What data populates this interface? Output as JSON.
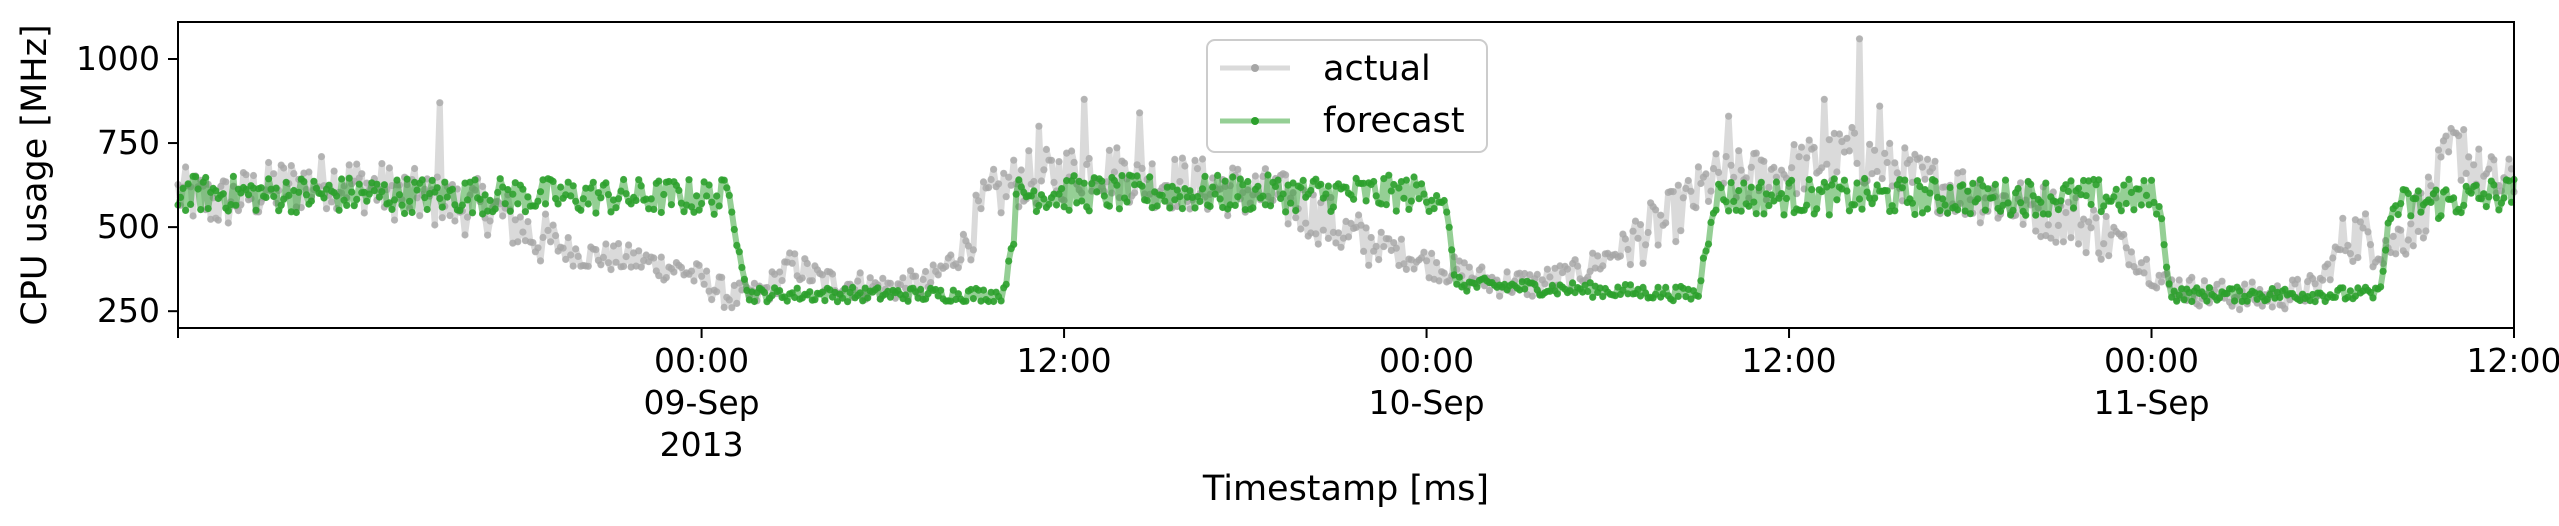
{
  "chart_data": {
    "type": "line",
    "xlabel": "Timestamp [ms]",
    "ylabel": "CPU usage [MHz]",
    "xlim": [
      "2013-09-08T06:40",
      "2013-09-11T12:00"
    ],
    "ylim": [
      200,
      1110
    ],
    "x_ticks": [
      {
        "t": "2013-09-09T00:00",
        "lines": [
          "00:00",
          "09-Sep",
          "2013"
        ]
      },
      {
        "t": "2013-09-09T12:00",
        "lines": [
          "12:00"
        ]
      },
      {
        "t": "2013-09-10T00:00",
        "lines": [
          "00:00",
          "10-Sep"
        ]
      },
      {
        "t": "2013-09-10T12:00",
        "lines": [
          "12:00"
        ]
      },
      {
        "t": "2013-09-11T00:00",
        "lines": [
          "00:00",
          "11-Sep"
        ]
      },
      {
        "t": "2013-09-11T12:00",
        "lines": [
          "12:00"
        ]
      }
    ],
    "y_ticks": [
      250,
      500,
      750,
      1000
    ],
    "grid": false,
    "legend": {
      "position": "upper-center"
    },
    "sampling_interval_min": 5,
    "series": [
      {
        "name": "actual",
        "color": "#a6a6a6",
        "start": "2013-09-08T06:40",
        "anchors": [
          [
            "2013-09-08T06:40",
            600
          ],
          [
            "2013-09-08T08:00",
            570
          ],
          [
            "2013-09-08T10:00",
            620
          ],
          [
            "2013-09-08T12:00",
            640
          ],
          [
            "2013-09-08T14:00",
            600
          ],
          [
            "2013-09-08T16:00",
            560
          ],
          [
            "2013-09-08T17:00",
            560
          ],
          [
            "2013-09-08T18:30",
            470
          ],
          [
            "2013-09-08T20:00",
            420
          ],
          [
            "2013-09-08T22:00",
            400
          ],
          [
            "2013-09-08T23:30",
            370
          ],
          [
            "2013-09-09T01:00",
            290
          ],
          [
            "2013-09-09T02:00",
            300
          ],
          [
            "2013-09-09T03:00",
            390
          ],
          [
            "2013-09-09T04:00",
            340
          ],
          [
            "2013-09-09T06:00",
            320
          ],
          [
            "2013-09-09T07:30",
            330
          ],
          [
            "2013-09-09T08:30",
            420
          ],
          [
            "2013-09-09T09:30",
            580
          ],
          [
            "2013-09-09T10:30",
            640
          ],
          [
            "2013-09-09T11:30",
            650
          ],
          [
            "2013-09-09T13:00",
            680
          ],
          [
            "2013-09-09T15:00",
            640
          ],
          [
            "2013-09-09T17:00",
            620
          ],
          [
            "2013-09-09T19:00",
            590
          ],
          [
            "2013-09-09T20:30",
            530
          ],
          [
            "2013-09-09T21:30",
            470
          ],
          [
            "2013-09-09T23:00",
            430
          ],
          [
            "2013-09-10T00:30",
            380
          ],
          [
            "2013-09-10T02:00",
            340
          ],
          [
            "2013-09-10T03:30",
            330
          ],
          [
            "2013-09-10T05:00",
            360
          ],
          [
            "2013-09-10T06:30",
            440
          ],
          [
            "2013-09-10T08:00",
            520
          ],
          [
            "2013-09-10T09:30",
            640
          ],
          [
            "2013-09-10T11:00",
            650
          ],
          [
            "2013-09-10T12:30",
            680
          ],
          [
            "2013-09-10T14:00",
            720
          ],
          [
            "2013-09-10T16:00",
            650
          ],
          [
            "2013-09-10T18:00",
            600
          ],
          [
            "2013-09-10T20:00",
            560
          ],
          [
            "2013-09-10T21:30",
            520
          ],
          [
            "2013-09-10T23:00",
            450
          ],
          [
            "2013-09-11T00:30",
            330
          ],
          [
            "2013-09-11T02:00",
            300
          ],
          [
            "2013-09-11T04:00",
            290
          ],
          [
            "2013-09-11T05:30",
            320
          ],
          [
            "2013-09-11T06:30",
            480
          ],
          [
            "2013-09-11T08:00",
            450
          ],
          [
            "2013-09-11T09:00",
            550
          ],
          [
            "2013-09-11T10:00",
            740
          ],
          [
            "2013-09-11T11:00",
            640
          ],
          [
            "2013-09-11T12:00",
            620
          ]
        ],
        "spikes": [
          [
            "2013-09-08T15:20",
            870
          ],
          [
            "2013-09-09T12:40",
            880
          ],
          [
            "2013-09-09T11:10",
            800
          ],
          [
            "2013-09-09T14:30",
            840
          ],
          [
            "2013-09-10T10:00",
            830
          ],
          [
            "2013-09-10T14:20",
            1060
          ],
          [
            "2013-09-10T13:10",
            880
          ],
          [
            "2013-09-10T15:00",
            860
          ],
          [
            "2013-09-11T10:20",
            790
          ]
        ]
      },
      {
        "name": "forecast",
        "color": "#2ca02c",
        "start": "2013-09-08T06:40",
        "anchors": [
          [
            "2013-09-08T06:40",
            600
          ],
          [
            "2013-09-08T22:30",
            590
          ],
          [
            "2013-09-09T01:00",
            590
          ],
          [
            "2013-09-09T01:30",
            300
          ],
          [
            "2013-09-09T10:00",
            300
          ],
          [
            "2013-09-09T10:30",
            600
          ],
          [
            "2013-09-10T00:30",
            600
          ],
          [
            "2013-09-10T01:00",
            330
          ],
          [
            "2013-09-10T09:00",
            300
          ],
          [
            "2013-09-10T09:30",
            590
          ],
          [
            "2013-09-11T00:10",
            590
          ],
          [
            "2013-09-11T00:40",
            300
          ],
          [
            "2013-09-11T07:30",
            300
          ],
          [
            "2013-09-11T08:00",
            560
          ],
          [
            "2013-09-11T12:00",
            600
          ]
        ]
      }
    ]
  }
}
